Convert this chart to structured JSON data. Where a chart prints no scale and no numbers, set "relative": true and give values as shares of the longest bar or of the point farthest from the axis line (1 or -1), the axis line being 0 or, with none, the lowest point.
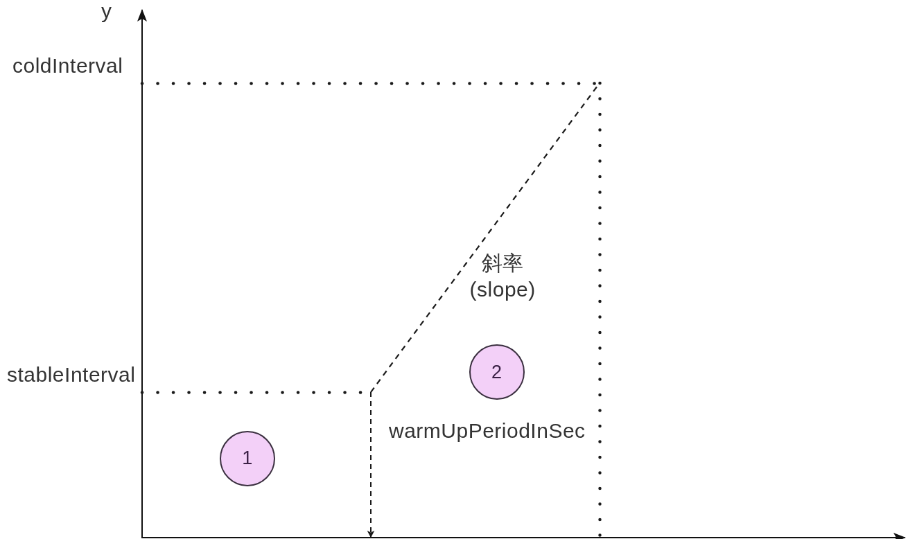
{
  "chart_data": {
    "type": "line",
    "relative": true,
    "ylabel": "y",
    "categories": [
      null,
      null,
      null
    ],
    "series": [
      {
        "values": [
          null,
          0.32,
          1
        ],
        "color": "#1a1a1a",
        "line_style": "dashed"
      }
    ],
    "ref_lines": [
      {
        "axis": "y",
        "value": 1,
        "label": "coldInterval",
        "color": "#1a1a1a",
        "line_style": "dotted"
      },
      {
        "axis": "y",
        "value": 0.32,
        "label": "stableInterval",
        "color": "#1a1a1a",
        "line_style": "dotted"
      }
    ],
    "annotations": [
      "斜率\n(slope)",
      "warmUpPeriodInSec",
      "1",
      "2"
    ],
    "marker": "none",
    "grid": false
  }
}
